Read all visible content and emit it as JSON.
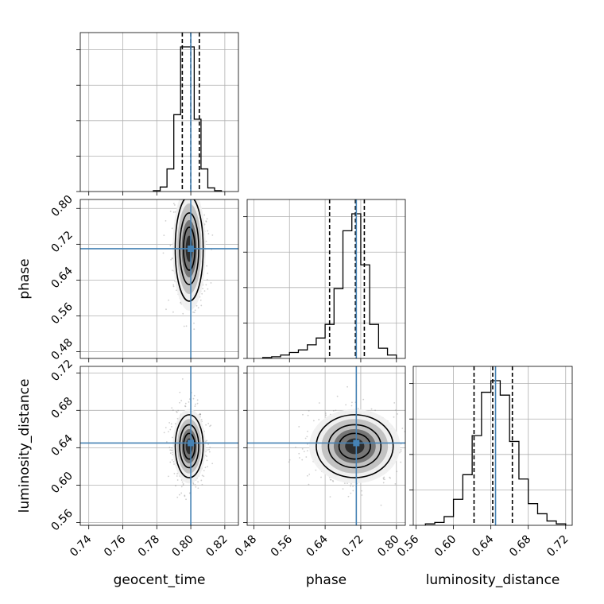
{
  "chart_data": {
    "type": "corner",
    "parameters": [
      "geocent_time",
      "phase",
      "luminosity_distance"
    ],
    "axis_labels": {
      "x": [
        "geocent_time",
        "phase",
        "luminosity_distance"
      ],
      "y": [
        "",
        "phase",
        "luminosity_distance"
      ]
    },
    "ranges": {
      "geocent_time": [
        0.735,
        0.828
      ],
      "phase": [
        0.465,
        0.82
      ],
      "luminosity_distance": [
        0.557,
        0.727
      ]
    },
    "ticks": {
      "geocent_time": [
        "0.74",
        "0.76",
        "0.78",
        "0.80",
        "0.82"
      ],
      "phase": [
        "0.48",
        "0.56",
        "0.64",
        "0.72",
        "0.80"
      ],
      "luminosity_distance": [
        "0.56",
        "0.60",
        "0.64",
        "0.68",
        "0.72"
      ]
    },
    "truths": {
      "geocent_time": 0.8,
      "phase": 0.71,
      "luminosity_distance": 0.645
    },
    "quantiles": {
      "geocent_time": [
        0.795,
        0.8,
        0.805
      ],
      "phase": [
        0.65,
        0.708,
        0.728
      ],
      "luminosity_distance": [
        0.622,
        0.642,
        0.663
      ]
    },
    "histograms": {
      "geocent_time": {
        "bin_edges": [
          0.778,
          0.782,
          0.786,
          0.79,
          0.794,
          0.798,
          0.802,
          0.806,
          0.81,
          0.814,
          0.818
        ],
        "counts": [
          1,
          5,
          25,
          85,
          160,
          160,
          80,
          25,
          4,
          1
        ]
      },
      "phase": {
        "bin_edges": [
          0.5,
          0.52,
          0.54,
          0.56,
          0.58,
          0.6,
          0.62,
          0.64,
          0.66,
          0.68,
          0.7,
          0.72,
          0.74,
          0.76,
          0.78,
          0.8
        ],
        "counts": [
          1,
          2,
          4,
          7,
          10,
          16,
          24,
          40,
          82,
          150,
          170,
          110,
          40,
          12,
          4
        ]
      },
      "luminosity_distance": {
        "bin_edges": [
          0.57,
          0.58,
          0.59,
          0.6,
          0.61,
          0.62,
          0.63,
          0.64,
          0.65,
          0.66,
          0.67,
          0.68,
          0.69,
          0.7,
          0.71,
          0.72
        ],
        "counts": [
          1,
          2,
          6,
          18,
          35,
          62,
          92,
          100,
          90,
          58,
          32,
          15,
          8,
          3,
          1
        ]
      }
    },
    "colors": {
      "truth": "#4682b4",
      "histogram": "#000000",
      "grid": "#b0b0b0",
      "scatter": "#888888",
      "density": [
        "#f0f0f0",
        "#bdbdbd",
        "#6e6e6e",
        "#262626"
      ]
    },
    "grid": true,
    "panel_pairs": [
      [
        "geocent_time",
        "phase"
      ],
      [
        "geocent_time",
        "luminosity_distance"
      ],
      [
        "phase",
        "luminosity_distance"
      ]
    ]
  }
}
